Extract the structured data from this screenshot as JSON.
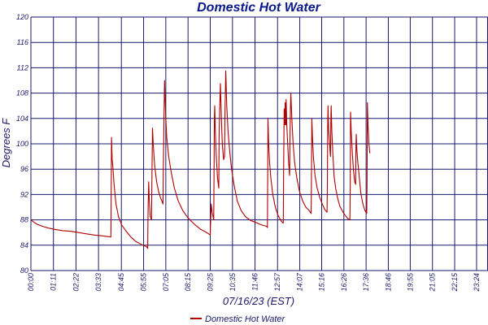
{
  "chart_data": {
    "type": "line",
    "title": "Domestic Hot Water",
    "xlabel": "07/16/23 (EST)",
    "ylabel": "Degrees F",
    "ylim": [
      80,
      120
    ],
    "yticks": [
      "80",
      "84",
      "88",
      "92",
      "96",
      "100",
      "104",
      "108",
      "112",
      "116",
      "120"
    ],
    "xlim": [
      0,
      1440
    ],
    "xticks": [
      {
        "t": 0,
        "label": "00:00"
      },
      {
        "t": 71,
        "label": "01:11"
      },
      {
        "t": 142,
        "label": "02:22"
      },
      {
        "t": 213,
        "label": "03:33"
      },
      {
        "t": 285,
        "label": "04:45"
      },
      {
        "t": 355,
        "label": "05:55"
      },
      {
        "t": 425,
        "label": "07:05"
      },
      {
        "t": 495,
        "label": "08:15"
      },
      {
        "t": 565,
        "label": "09:25"
      },
      {
        "t": 635,
        "label": "10:35"
      },
      {
        "t": 706,
        "label": "11:46"
      },
      {
        "t": 777,
        "label": "12:57"
      },
      {
        "t": 847,
        "label": "14:07"
      },
      {
        "t": 916,
        "label": "15:16"
      },
      {
        "t": 986,
        "label": "16:26"
      },
      {
        "t": 1056,
        "label": "17:36"
      },
      {
        "t": 1126,
        "label": "18:46"
      },
      {
        "t": 1195,
        "label": "19:55"
      },
      {
        "t": 1265,
        "label": "21:05"
      },
      {
        "t": 1335,
        "label": "22:15"
      },
      {
        "t": 1404,
        "label": "23:24"
      }
    ],
    "grid": true,
    "legend": "bottom-center",
    "colors": {
      "line": "#b00000",
      "grid": "#1a1a6e",
      "text": "#1a1a6e",
      "title": "#0a1a8a"
    },
    "series": [
      {
        "name": "Domestic Hot Water",
        "points": [
          [
            0,
            88.0
          ],
          [
            10,
            87.6
          ],
          [
            20,
            87.3
          ],
          [
            35,
            87.0
          ],
          [
            55,
            86.7
          ],
          [
            75,
            86.5
          ],
          [
            100,
            86.3
          ],
          [
            125,
            86.2
          ],
          [
            150,
            86.0
          ],
          [
            175,
            85.8
          ],
          [
            200,
            85.6
          ],
          [
            220,
            85.5
          ],
          [
            238,
            85.4
          ],
          [
            252,
            85.3
          ],
          [
            253,
            92.0
          ],
          [
            254,
            101.0
          ],
          [
            256,
            97.5
          ],
          [
            258,
            96.5
          ],
          [
            262,
            93.5
          ],
          [
            268,
            90.5
          ],
          [
            276,
            88.5
          ],
          [
            286,
            87.2
          ],
          [
            300,
            86.2
          ],
          [
            315,
            85.3
          ],
          [
            330,
            84.6
          ],
          [
            345,
            84.2
          ],
          [
            357,
            83.9
          ],
          [
            364,
            83.8
          ],
          [
            368,
            83.5
          ],
          [
            369,
            89.0
          ],
          [
            371,
            94.0
          ],
          [
            373,
            91.0
          ],
          [
            376,
            88.5
          ],
          [
            380,
            88.0
          ],
          [
            381,
            93.5
          ],
          [
            383,
            102.5
          ],
          [
            386,
            99.5
          ],
          [
            390,
            96.5
          ],
          [
            396,
            94.0
          ],
          [
            403,
            92.3
          ],
          [
            410,
            91.3
          ],
          [
            416,
            90.5
          ],
          [
            417,
            95.0
          ],
          [
            419,
            103.0
          ],
          [
            421,
            110.0
          ],
          [
            424,
            105.0
          ],
          [
            428,
            101.0
          ],
          [
            434,
            98.0
          ],
          [
            442,
            95.5
          ],
          [
            452,
            93.0
          ],
          [
            464,
            91.0
          ],
          [
            478,
            89.5
          ],
          [
            492,
            88.5
          ],
          [
            505,
            87.8
          ],
          [
            520,
            87.1
          ],
          [
            535,
            86.5
          ],
          [
            550,
            86.1
          ],
          [
            560,
            85.8
          ],
          [
            565,
            85.6
          ],
          [
            566,
            87.5
          ],
          [
            568,
            90.5
          ],
          [
            571,
            89.2
          ],
          [
            574,
            88.5
          ],
          [
            576,
            88.0
          ],
          [
            577,
            96.0
          ],
          [
            578,
            104.0
          ],
          [
            579,
            106.0
          ],
          [
            581,
            102.0
          ],
          [
            584,
            98.0
          ],
          [
            588,
            94.5
          ],
          [
            592,
            93.0
          ],
          [
            593,
            101.0
          ],
          [
            595,
            106.0
          ],
          [
            597,
            109.5
          ],
          [
            600,
            104.0
          ],
          [
            603,
            100.0
          ],
          [
            607,
            97.5
          ],
          [
            610,
            98.0
          ],
          [
            611,
            104.0
          ],
          [
            613,
            109.0
          ],
          [
            614,
            111.5
          ],
          [
            617,
            106.0
          ],
          [
            621,
            102.0
          ],
          [
            626,
            99.0
          ],
          [
            632,
            96.0
          ],
          [
            640,
            93.5
          ],
          [
            650,
            91.0
          ],
          [
            662,
            89.5
          ],
          [
            676,
            88.5
          ],
          [
            692,
            87.9
          ],
          [
            708,
            87.6
          ],
          [
            722,
            87.3
          ],
          [
            734,
            87.1
          ],
          [
            742,
            87.0
          ],
          [
            745,
            86.8
          ],
          [
            746,
            94.0
          ],
          [
            747,
            104.0
          ],
          [
            749,
            100.0
          ],
          [
            752,
            97.0
          ],
          [
            756,
            94.5
          ],
          [
            762,
            92.0
          ],
          [
            770,
            90.0
          ],
          [
            778,
            88.8
          ],
          [
            786,
            88.0
          ],
          [
            792,
            87.6
          ],
          [
            795,
            87.5
          ],
          [
            796,
            96.0
          ],
          [
            798,
            105.5
          ],
          [
            800,
            103.0
          ],
          [
            801,
            106.5
          ],
          [
            803,
            103.0
          ],
          [
            804,
            107.0
          ],
          [
            806,
            103.0
          ],
          [
            809,
            100.0
          ],
          [
            812,
            97.0
          ],
          [
            815,
            95.0
          ],
          [
            816,
            101.0
          ],
          [
            818,
            106.0
          ],
          [
            819,
            108.0
          ],
          [
            822,
            104.0
          ],
          [
            826,
            100.0
          ],
          [
            831,
            97.0
          ],
          [
            838,
            94.5
          ],
          [
            846,
            92.5
          ],
          [
            856,
            91.0
          ],
          [
            866,
            90.0
          ],
          [
            876,
            89.5
          ],
          [
            883,
            89.0
          ],
          [
            884,
            96.0
          ],
          [
            885,
            104.0
          ],
          [
            887,
            101.0
          ],
          [
            890,
            98.0
          ],
          [
            895,
            95.0
          ],
          [
            902,
            93.0
          ],
          [
            910,
            91.5
          ],
          [
            918,
            90.5
          ],
          [
            926,
            89.6
          ],
          [
            933,
            89.2
          ],
          [
            934,
            93.5
          ],
          [
            935,
            103.0
          ],
          [
            936,
            106.0
          ],
          [
            938,
            102.0
          ],
          [
            941,
            100.0
          ],
          [
            943,
            98.5
          ],
          [
            944,
            98.0
          ],
          [
            945,
            104.0
          ],
          [
            946,
            106.0
          ],
          [
            948,
            102.0
          ],
          [
            951,
            98.5
          ],
          [
            955,
            95.0
          ],
          [
            960,
            93.0
          ],
          [
            966,
            91.5
          ],
          [
            973,
            90.2
          ],
          [
            980,
            89.5
          ],
          [
            986,
            89.0
          ],
          [
            992,
            88.6
          ],
          [
            998,
            88.2
          ],
          [
            1005,
            88.0
          ],
          [
            1006,
            93.0
          ],
          [
            1007,
            105.0
          ],
          [
            1009,
            102.0
          ],
          [
            1012,
            99.0
          ],
          [
            1016,
            96.0
          ],
          [
            1020,
            94.0
          ],
          [
            1023,
            93.6
          ],
          [
            1024,
            99.0
          ],
          [
            1025,
            101.5
          ],
          [
            1027,
            99.0
          ],
          [
            1030,
            97.0
          ],
          [
            1033,
            95.5
          ],
          [
            1036,
            94.0
          ],
          [
            1040,
            92.0
          ],
          [
            1046,
            90.5
          ],
          [
            1052,
            89.5
          ],
          [
            1056,
            89.2
          ],
          [
            1058,
            89.0
          ],
          [
            1059,
            94.0
          ],
          [
            1060,
            106.5
          ],
          [
            1062,
            103.0
          ],
          [
            1065,
            100.0
          ],
          [
            1068,
            98.5
          ]
        ]
      }
    ]
  }
}
